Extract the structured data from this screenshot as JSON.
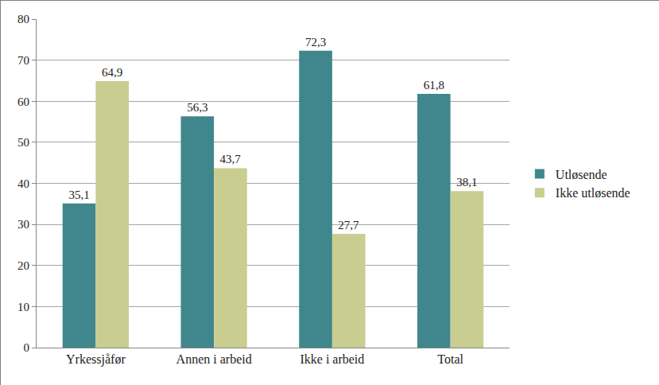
{
  "chart_data": {
    "type": "bar",
    "categories": [
      "Yrkessjåfør",
      "Annen i arbeid",
      "Ikke i arbeid",
      "Total"
    ],
    "series": [
      {
        "name": "Utløsende",
        "color": "#3f878d",
        "values": [
          35.1,
          56.3,
          72.3,
          61.8
        ],
        "value_labels": [
          "35,1",
          "56,3",
          "72,3",
          "61,8"
        ]
      },
      {
        "name": "Ikke utløsende",
        "color": "#c9cd8f",
        "values": [
          64.9,
          43.7,
          27.7,
          38.1
        ],
        "value_labels": [
          "64,9",
          "43,7",
          "27,7",
          "38,1"
        ]
      }
    ],
    "ylim": [
      0,
      80
    ],
    "yticks": [
      0,
      10,
      20,
      30,
      40,
      50,
      60,
      70,
      80
    ],
    "grid": true,
    "legend": "right",
    "data_labels": true
  }
}
